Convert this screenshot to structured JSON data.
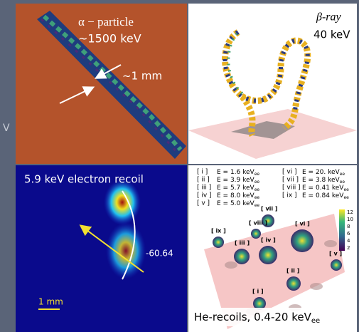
{
  "panels": [
    {
      "title": "α − particle",
      "subtitle": "~1500 keV",
      "annotation": "~1 mm"
    },
    {
      "title": "β-ray",
      "subtitle": "40 keV"
    },
    {
      "title": "5.9 keV electron recoil",
      "annotation": "-60.64",
      "scale_bar": "1 mm"
    },
    {
      "legend": [
        {
          "id": "[ i ]",
          "text": "E = 1.6 keV",
          "sub": "ee"
        },
        {
          "id": "[ ii ]",
          "text": "E = 3.9 keV",
          "sub": "ee"
        },
        {
          "id": "[ iii ]",
          "text": "E = 5.7 keV",
          "sub": "ee"
        },
        {
          "id": "[ iv ]",
          "text": "E = 8.0 keV",
          "sub": "ee"
        },
        {
          "id": "[ v ]",
          "text": "E = 5.0 keV",
          "sub": "ee"
        },
        {
          "id": "[ vi ]",
          "text": "E = 20. keV",
          "sub": "ee"
        },
        {
          "id": "[ vii ]",
          "text": "E = 3.8 keV",
          "sub": "ee"
        },
        {
          "id": "[ viii ]",
          "text": "E = 0.41 keV",
          "sub": "ee"
        },
        {
          "id": "[ ix ]",
          "text": "E = 0.84 keV",
          "sub": "ee"
        }
      ],
      "labels": [
        "[ i ]",
        "[ ii ]",
        "[ iii ]",
        "[ iv ]",
        "[ v ]",
        "[ vi ]",
        "[ vii ]",
        "[ viii ]",
        "[ ix ]"
      ],
      "colorbar_ticks": [
        12,
        10,
        8,
        6,
        4,
        2
      ],
      "caption": "He-recoils, 0.4-20 keV",
      "caption_sub": "ee"
    }
  ]
}
